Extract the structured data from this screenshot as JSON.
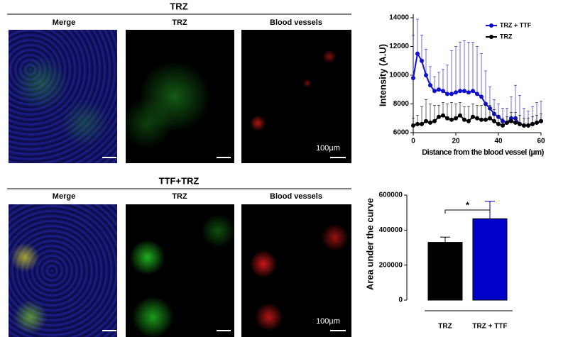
{
  "panels": {
    "top": {
      "title": "TRZ",
      "columns": [
        "Merge",
        "TRZ",
        "Blood vessels"
      ],
      "scale_bar": "100µm"
    },
    "bottom": {
      "title": "TTF+TRZ",
      "columns": [
        "Merge",
        "TRZ",
        "Blood vessels"
      ],
      "scale_bar": "100µm"
    }
  },
  "chart_data": [
    {
      "type": "line",
      "y_label": "Intensity (A.U)",
      "x_label": "Distance from the blood vessel (µm)",
      "x": [
        0,
        2,
        4,
        6,
        8,
        10,
        12,
        14,
        16,
        18,
        20,
        22,
        24,
        26,
        28,
        30,
        32,
        34,
        36,
        38,
        40,
        42,
        44,
        46,
        48,
        50,
        52,
        54,
        56,
        58,
        60
      ],
      "series": [
        {
          "name": "TRZ + TTF",
          "color": "#1010d0",
          "values": [
            9800,
            11500,
            11000,
            10000,
            9300,
            8900,
            9000,
            8900,
            8700,
            8700,
            8800,
            8900,
            8900,
            8800,
            8900,
            8700,
            8500,
            8000,
            7700,
            7300,
            7100,
            6800,
            6700,
            7000,
            7000,
            6600,
            6500,
            6500,
            6600,
            6700,
            6800
          ],
          "errors": [
            3000,
            2400,
            1800,
            1800,
            1300,
            1000,
            1200,
            1500,
            2000,
            3000,
            3200,
            3400,
            3500,
            3500,
            3400,
            3300,
            3000,
            2300,
            1500,
            1000,
            900,
            900,
            1000,
            1500,
            2300,
            2000,
            1200,
            1000,
            1200,
            1400,
            1400
          ]
        },
        {
          "name": "TRZ",
          "color": "#000000",
          "values": [
            6500,
            6600,
            6600,
            6800,
            6700,
            6800,
            7100,
            7200,
            7000,
            6900,
            7000,
            7200,
            6900,
            6800,
            7100,
            7000,
            6900,
            6900,
            7000,
            6800,
            6600,
            6500,
            6700,
            6800,
            6700,
            6600,
            6500,
            6500,
            6600,
            6700,
            6800
          ],
          "errors": [
            500,
            600,
            1200,
            1500,
            1300,
            1100,
            800,
            900,
            1000,
            1200,
            1000,
            900,
            900,
            1000,
            900,
            900,
            1000,
            1000,
            900,
            800,
            600,
            500,
            400,
            600,
            700,
            600,
            500,
            500,
            500,
            500,
            500
          ]
        }
      ],
      "xlim": [
        0,
        60
      ],
      "xticks": [
        0,
        20,
        40,
        60
      ],
      "ylim": [
        6000,
        14000
      ],
      "yticks": [
        6000,
        8000,
        10000,
        12000,
        14000
      ],
      "legend": "top-right"
    },
    {
      "type": "bar",
      "y_label": "Area under the curve",
      "categories": [
        "TRZ",
        "TRZ + TTF"
      ],
      "values": [
        330000,
        465000
      ],
      "errors": [
        30000,
        100000
      ],
      "colors": [
        "#000000",
        "#0000c8"
      ],
      "ylim": [
        0,
        600000
      ],
      "yticks": [
        0,
        200000,
        400000,
        600000
      ],
      "annotation": "*"
    }
  ]
}
